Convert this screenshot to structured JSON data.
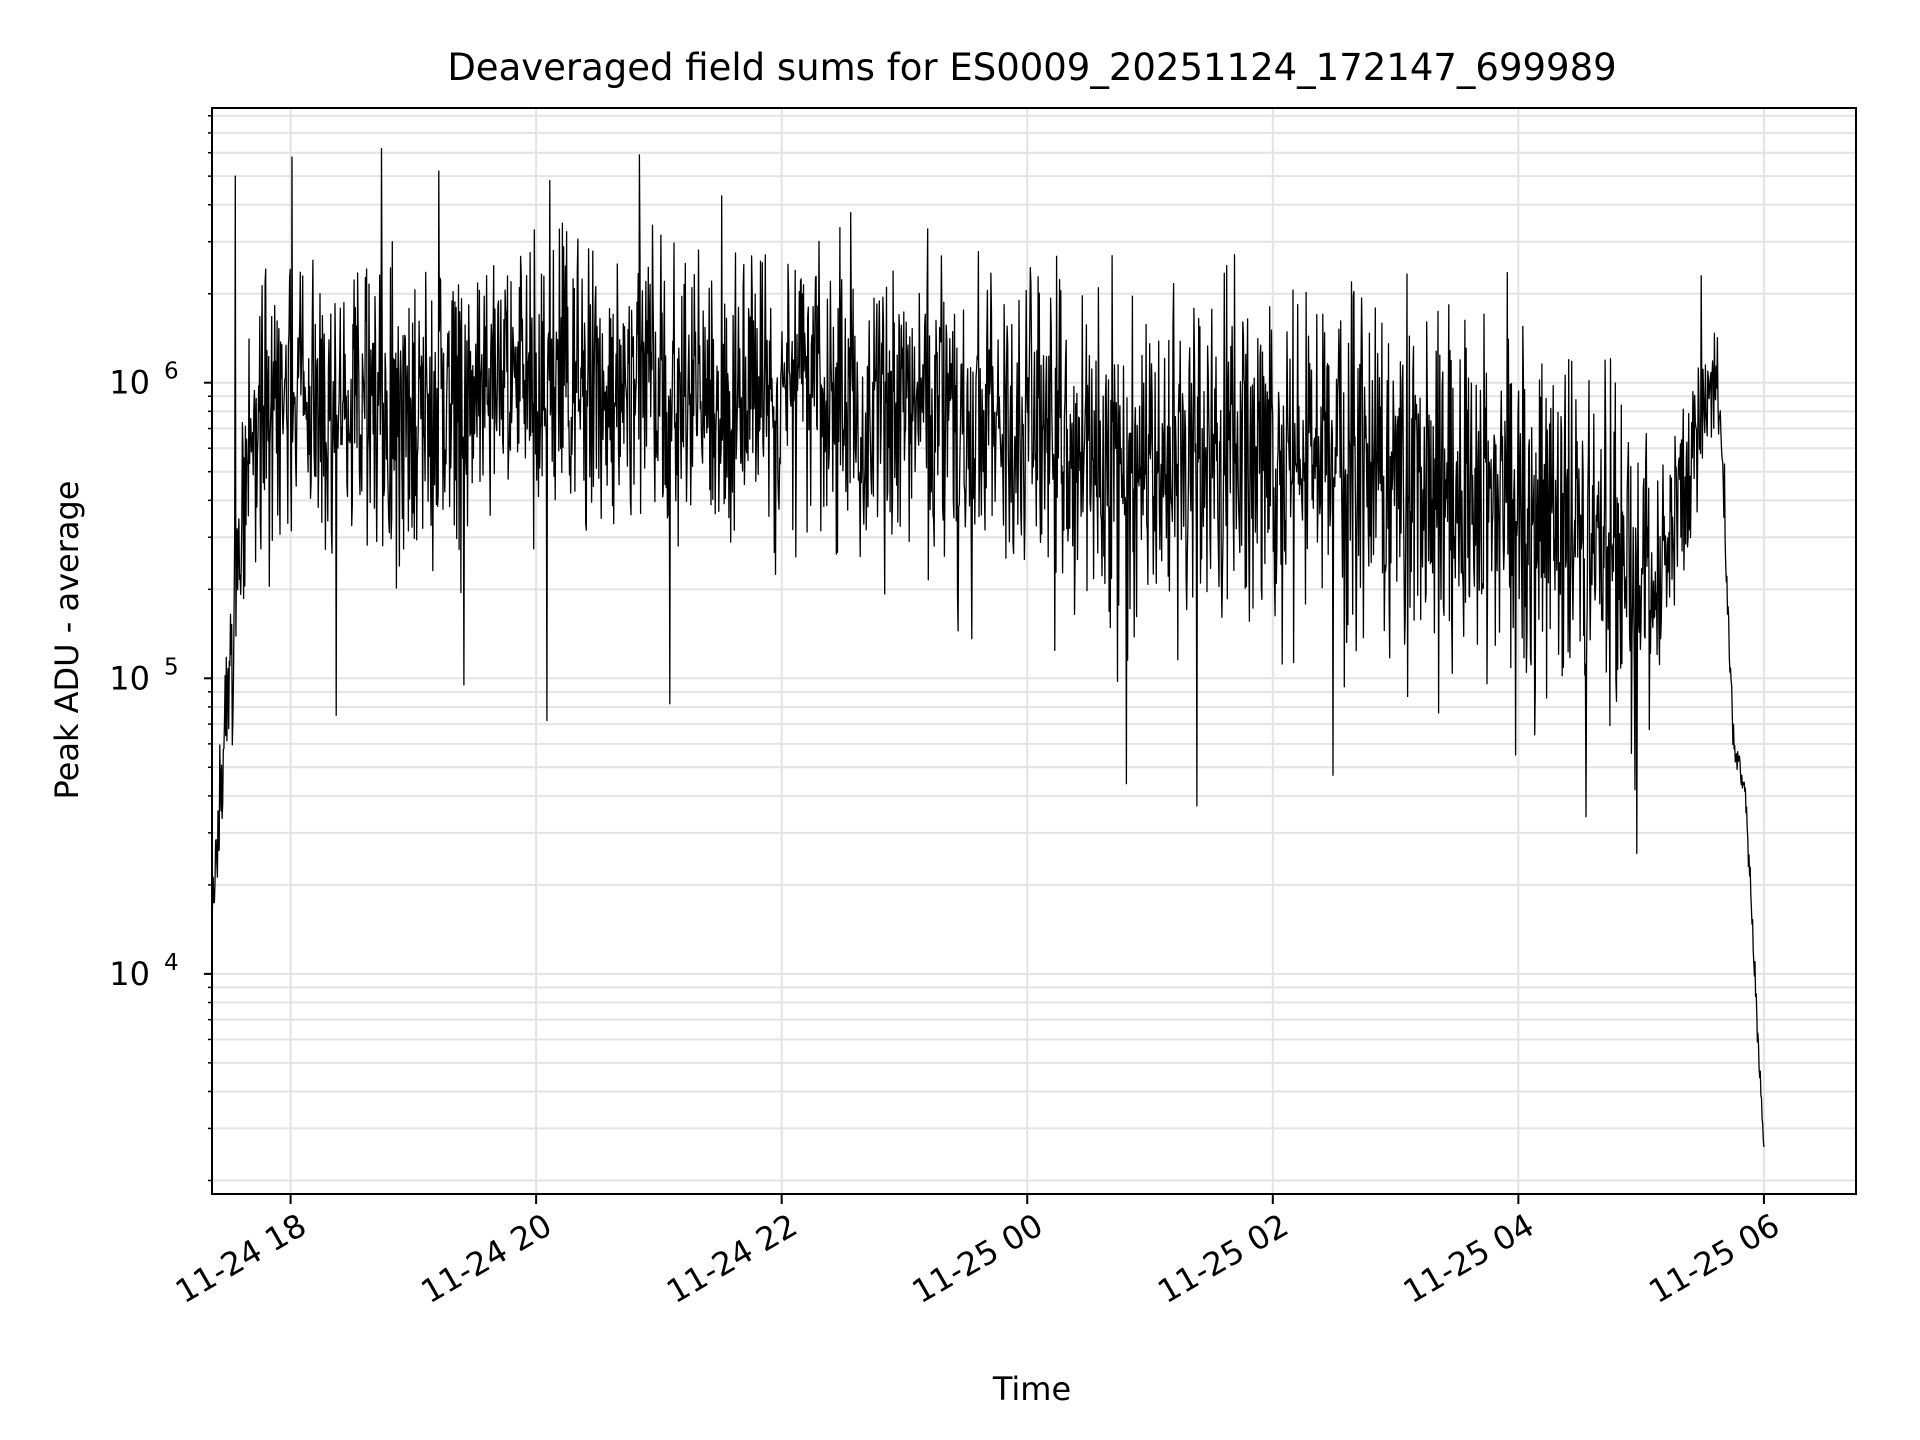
{
  "chart_data": {
    "type": "line",
    "title": "Deaveraged field sums for ES0009_20251124_172147_699989",
    "xlabel": "Time",
    "ylabel": "Peak ADU - average",
    "yscale": "log",
    "ylim": [
      1800,
      8500000
    ],
    "xlim_hours_since_2025_11_24_17_00": [
      0.36,
      13.75
    ],
    "grid": true,
    "line_color": "#000000",
    "grid_color": "#e3e3e3",
    "x_ticks": [
      {
        "hour": 1,
        "label": "11-24 18"
      },
      {
        "hour": 3,
        "label": "11-24 20"
      },
      {
        "hour": 5,
        "label": "11-24 22"
      },
      {
        "hour": 7,
        "label": "11-25 00"
      },
      {
        "hour": 9,
        "label": "11-25 02"
      },
      {
        "hour": 11,
        "label": "11-25 04"
      },
      {
        "hour": 13,
        "label": "11-25 06"
      }
    ],
    "y_ticks": [
      {
        "value": 10000,
        "base": "10",
        "exp": "4"
      },
      {
        "value": 100000,
        "base": "10",
        "exp": "5"
      },
      {
        "value": 1000000,
        "base": "10",
        "exp": "6"
      }
    ],
    "series": [
      {
        "name": "Peak ADU - average",
        "note": "noisy time series (~1 sample/6s); envelope described by anchor points (hour since 17:00, typical level, noise spread in decades)",
        "profile": [
          [
            0.36,
            15000,
            0.05
          ],
          [
            0.45,
            60000,
            0.2
          ],
          [
            0.55,
            200000,
            0.25
          ],
          [
            0.65,
            700000,
            0.3
          ],
          [
            1.0,
            900000,
            0.32
          ],
          [
            2.0,
            700000,
            0.32
          ],
          [
            3.0,
            1100000,
            0.32
          ],
          [
            4.0,
            1000000,
            0.32
          ],
          [
            5.0,
            950000,
            0.32
          ],
          [
            6.0,
            850000,
            0.34
          ],
          [
            7.0,
            700000,
            0.36
          ],
          [
            8.0,
            550000,
            0.36
          ],
          [
            9.0,
            600000,
            0.36
          ],
          [
            10.0,
            500000,
            0.36
          ],
          [
            11.0,
            380000,
            0.38
          ],
          [
            12.0,
            200000,
            0.38
          ],
          [
            12.1,
            190000,
            0.3
          ],
          [
            12.25,
            300000,
            0.25
          ],
          [
            12.45,
            700000,
            0.18
          ],
          [
            12.6,
            1000000,
            0.14
          ],
          [
            12.65,
            700000,
            0.1
          ],
          [
            12.75,
            60000,
            0.05
          ],
          [
            12.85,
            40000,
            0.05
          ],
          [
            12.95,
            6000,
            0.05
          ],
          [
            13.0,
            2500,
            0.02
          ]
        ],
        "spikes": [
          [
            0.55,
            5000000
          ],
          [
            1.01,
            5800000
          ],
          [
            1.74,
            6200000
          ],
          [
            2.21,
            5200000
          ],
          [
            3.84,
            5900000
          ],
          [
            6.71,
            1700000
          ],
          [
            12.49,
            2300000
          ],
          [
            1.37,
            75000
          ],
          [
            2.41,
            95000
          ],
          [
            3.09,
            72000
          ],
          [
            4.09,
            82000
          ],
          [
            7.81,
            44000
          ],
          [
            8.38,
            37000
          ],
          [
            9.49,
            47000
          ],
          [
            10.98,
            55000
          ],
          [
            11.55,
            34000
          ],
          [
            11.95,
            42000
          ]
        ],
        "seed": 20251124
      }
    ]
  }
}
